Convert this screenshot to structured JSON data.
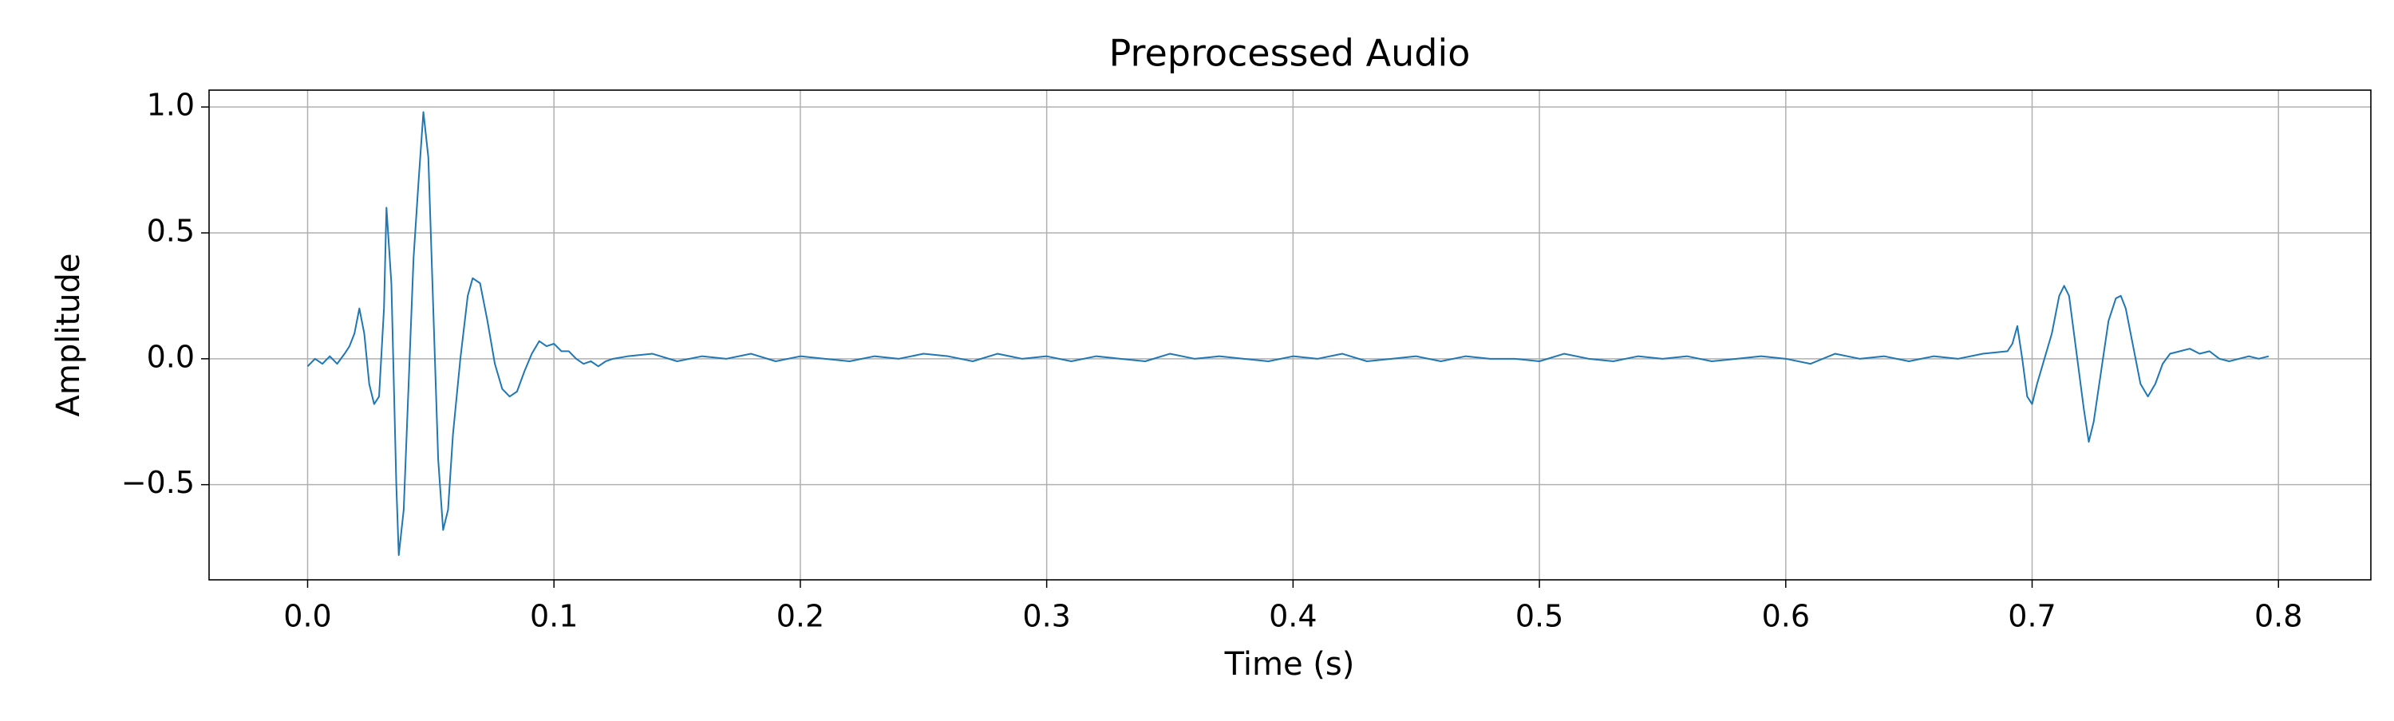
{
  "chart_data": {
    "type": "line",
    "title": "Preprocessed Audio",
    "x_label": "Time (s)",
    "y_label": "Amplitude",
    "color": "#1f77b4",
    "grid": true,
    "xlim": [
      -0.04,
      0.8375
    ],
    "ylim": [
      -0.878,
      1.067
    ],
    "xticks": [
      {
        "value": 0,
        "label": "0.0"
      },
      0.1,
      0.2,
      0.3,
      0.4,
      0.5,
      0.6,
      0.7,
      0.8
    ],
    "yticks": [
      {
        "value": -0.5,
        "label": "−0.5"
      },
      {
        "value": 0,
        "label": "0.0"
      },
      0.5,
      {
        "value": 1,
        "label": "1.0"
      }
    ],
    "x": [
      0.0,
      0.003,
      0.006,
      0.009,
      0.012,
      0.015,
      0.017,
      0.019,
      0.021,
      0.023,
      0.025,
      0.027,
      0.029,
      0.031,
      0.032,
      0.034,
      0.036,
      0.037,
      0.039,
      0.041,
      0.043,
      0.045,
      0.047,
      0.049,
      0.051,
      0.053,
      0.055,
      0.057,
      0.059,
      0.062,
      0.065,
      0.067,
      0.07,
      0.073,
      0.076,
      0.079,
      0.082,
      0.085,
      0.088,
      0.091,
      0.094,
      0.097,
      0.1,
      0.103,
      0.106,
      0.109,
      0.112,
      0.115,
      0.118,
      0.121,
      0.124,
      0.13,
      0.14,
      0.15,
      0.16,
      0.17,
      0.18,
      0.19,
      0.2,
      0.21,
      0.22,
      0.23,
      0.24,
      0.25,
      0.26,
      0.27,
      0.28,
      0.29,
      0.3,
      0.31,
      0.32,
      0.33,
      0.34,
      0.35,
      0.36,
      0.37,
      0.38,
      0.39,
      0.4,
      0.41,
      0.42,
      0.43,
      0.44,
      0.45,
      0.46,
      0.47,
      0.48,
      0.49,
      0.5,
      0.51,
      0.52,
      0.53,
      0.54,
      0.55,
      0.56,
      0.57,
      0.58,
      0.59,
      0.6,
      0.61,
      0.62,
      0.63,
      0.64,
      0.65,
      0.66,
      0.67,
      0.68,
      0.69,
      0.692,
      0.694,
      0.696,
      0.698,
      0.7,
      0.702,
      0.705,
      0.708,
      0.711,
      0.713,
      0.715,
      0.717,
      0.719,
      0.721,
      0.723,
      0.725,
      0.728,
      0.731,
      0.734,
      0.736,
      0.738,
      0.741,
      0.744,
      0.747,
      0.75,
      0.753,
      0.756,
      0.76,
      0.764,
      0.768,
      0.772,
      0.776,
      0.78,
      0.784,
      0.788,
      0.792,
      0.796
    ],
    "values": [
      -0.03,
      0.0,
      -0.02,
      0.01,
      -0.02,
      0.02,
      0.05,
      0.1,
      0.2,
      0.1,
      -0.1,
      -0.18,
      -0.15,
      0.2,
      0.6,
      0.3,
      -0.5,
      -0.78,
      -0.6,
      -0.1,
      0.4,
      0.7,
      0.98,
      0.8,
      0.2,
      -0.4,
      -0.68,
      -0.6,
      -0.3,
      0.0,
      0.25,
      0.32,
      0.3,
      0.15,
      -0.02,
      -0.12,
      -0.15,
      -0.13,
      -0.05,
      0.02,
      0.07,
      0.05,
      0.06,
      0.03,
      0.03,
      0.0,
      -0.02,
      -0.01,
      -0.03,
      -0.01,
      0.0,
      0.01,
      0.02,
      -0.01,
      0.01,
      0.0,
      0.02,
      -0.01,
      0.01,
      0.0,
      -0.01,
      0.01,
      0.0,
      0.02,
      0.01,
      -0.01,
      0.02,
      0.0,
      0.01,
      -0.01,
      0.01,
      0.0,
      -0.01,
      0.02,
      0.0,
      0.01,
      0.0,
      -0.01,
      0.01,
      0.0,
      0.02,
      -0.01,
      0.0,
      0.01,
      -0.01,
      0.01,
      0.0,
      0.0,
      -0.01,
      0.02,
      0.0,
      -0.01,
      0.01,
      0.0,
      0.01,
      -0.01,
      0.0,
      0.01,
      0.0,
      -0.02,
      0.02,
      0.0,
      0.01,
      -0.01,
      0.01,
      0.0,
      0.02,
      0.03,
      0.06,
      0.13,
      0.0,
      -0.15,
      -0.18,
      -0.1,
      0.0,
      0.1,
      0.25,
      0.29,
      0.25,
      0.1,
      -0.05,
      -0.2,
      -0.33,
      -0.25,
      -0.05,
      0.15,
      0.24,
      0.25,
      0.2,
      0.05,
      -0.1,
      -0.15,
      -0.1,
      -0.02,
      0.02,
      0.03,
      0.04,
      0.02,
      0.03,
      0.0,
      -0.01,
      0.0,
      0.01,
      0.0,
      0.01
    ]
  }
}
